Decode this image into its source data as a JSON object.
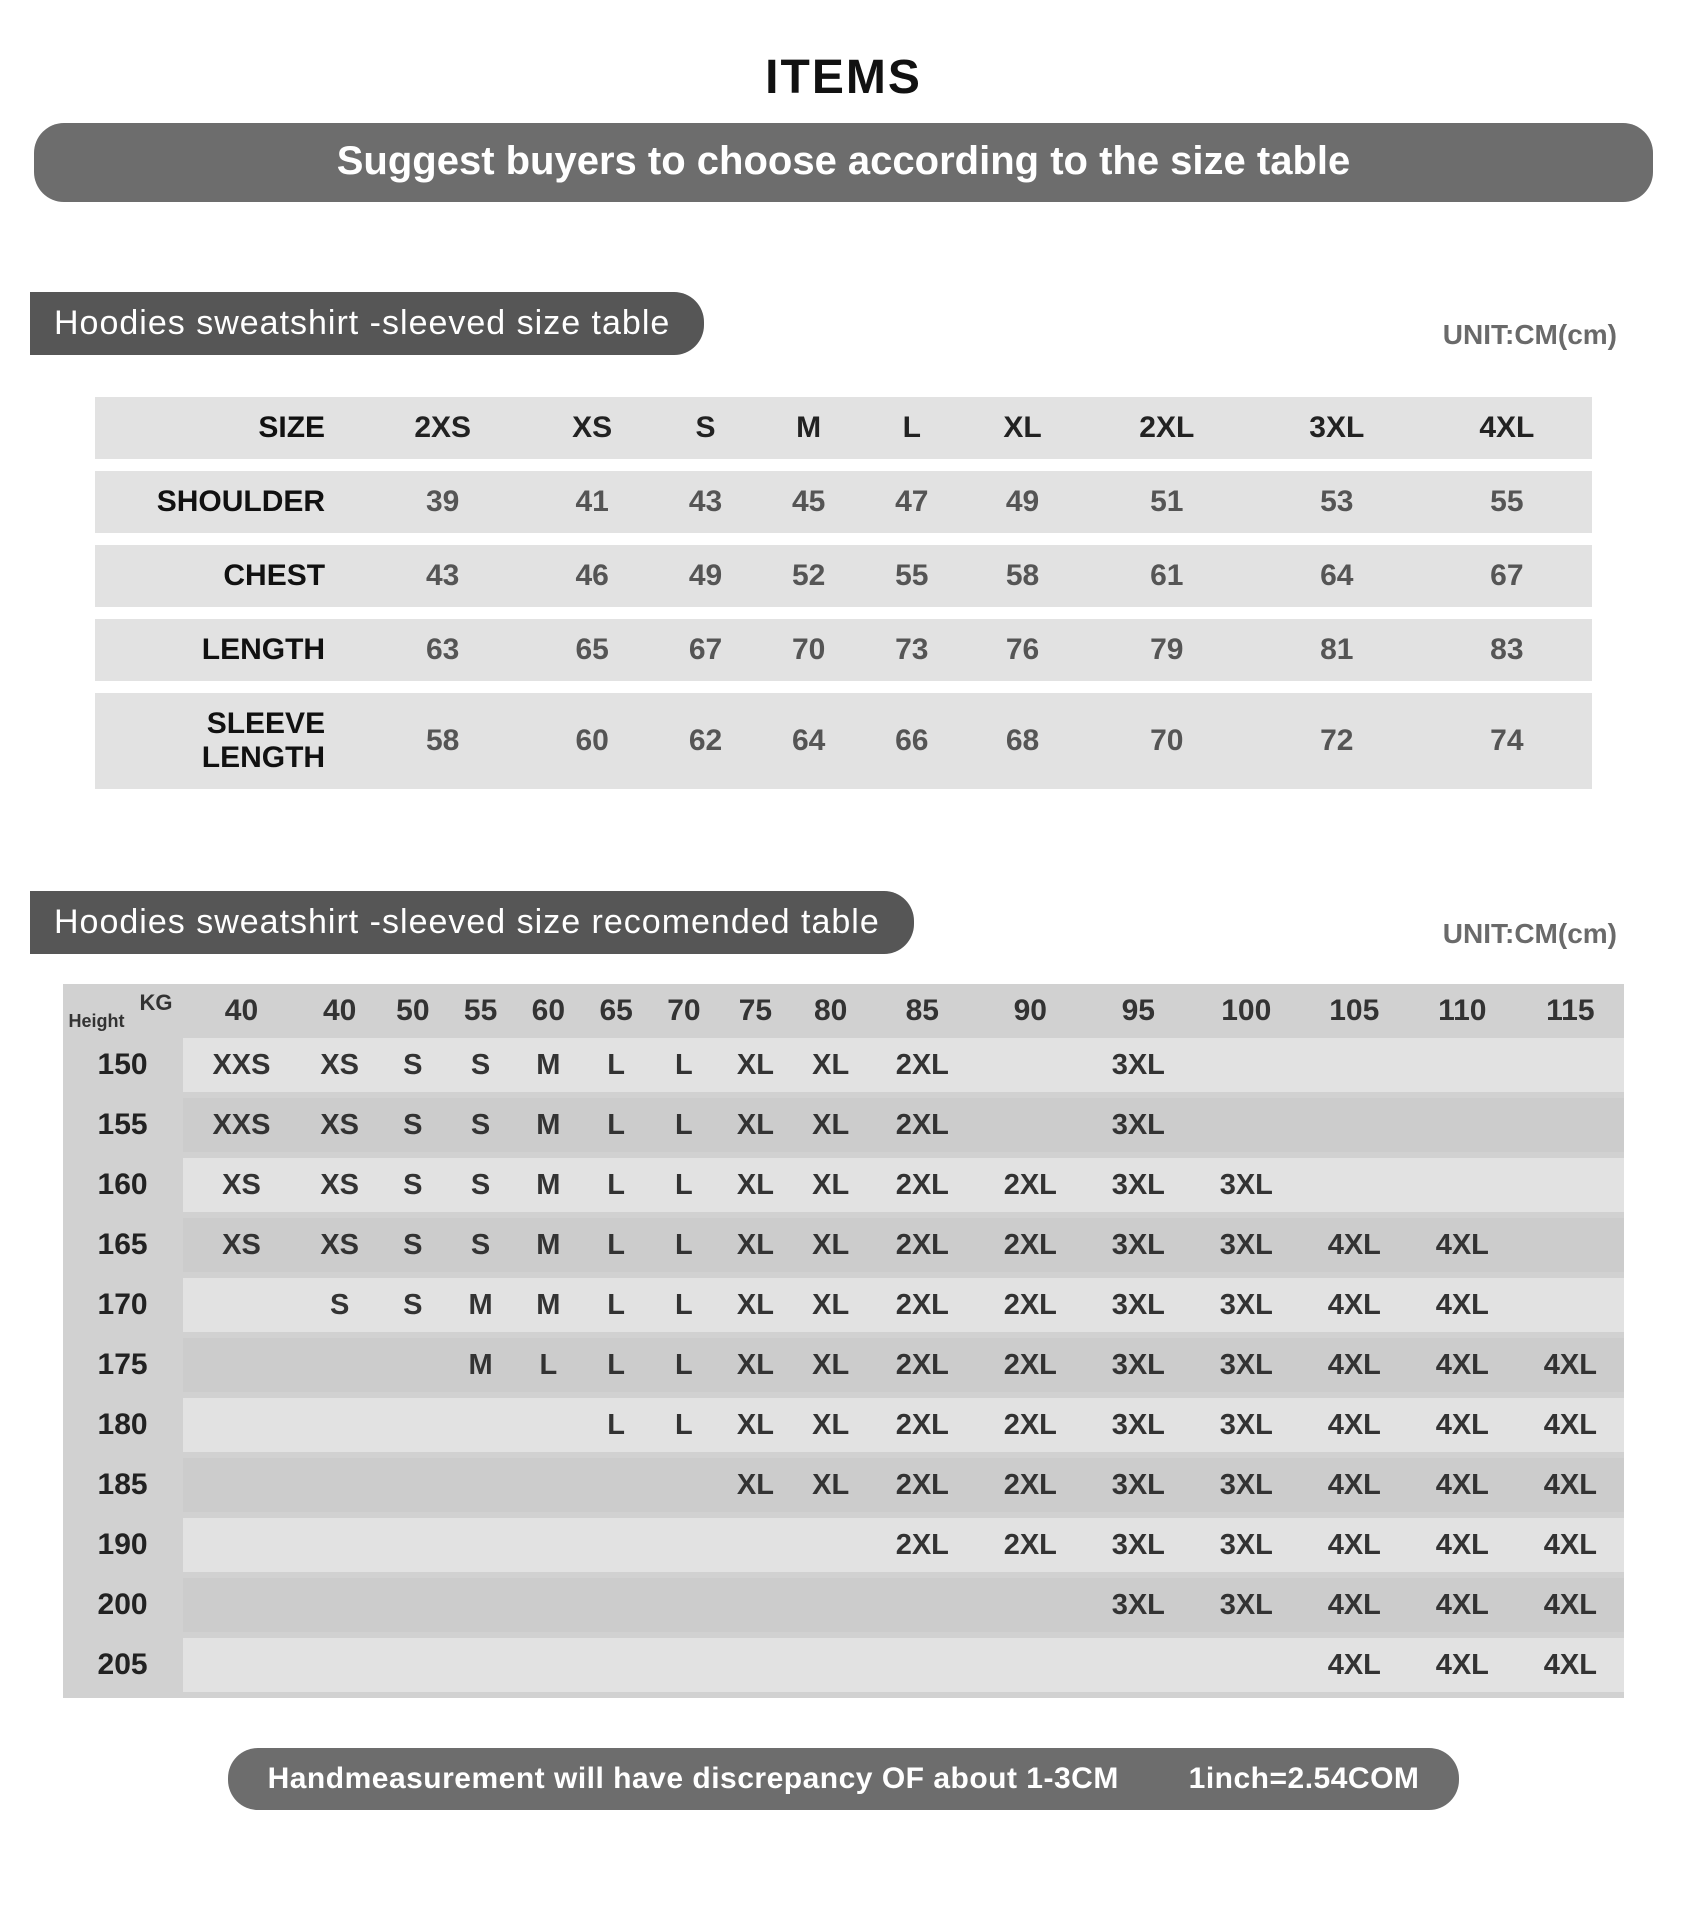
{
  "header": {
    "title": "ITEMS",
    "banner": "Suggest buyers to choose according to the size table"
  },
  "unit_label": "UNIT:CM(cm)",
  "section1": {
    "title": "Hoodies sweatshirt -sleeved  size  table",
    "columns": [
      "SIZE",
      "2XS",
      "XS",
      "S",
      "M",
      "L",
      "XL",
      "2XL",
      "3XL",
      "4XL"
    ],
    "rows": [
      {
        "label": "SHOULDER",
        "values": [
          "39",
          "41",
          "43",
          "45",
          "47",
          "49",
          "51",
          "53",
          "55"
        ]
      },
      {
        "label": "CHEST",
        "values": [
          "43",
          "46",
          "49",
          "52",
          "55",
          "58",
          "61",
          "64",
          "67"
        ]
      },
      {
        "label": "LENGTH",
        "values": [
          "63",
          "65",
          "67",
          "70",
          "73",
          "76",
          "79",
          "81",
          "83"
        ]
      },
      {
        "label": "SLEEVE LENGTH",
        "values": [
          "58",
          "60",
          "62",
          "64",
          "66",
          "68",
          "70",
          "72",
          "74"
        ]
      }
    ]
  },
  "section2": {
    "title": "Hoodies sweatshirt -sleeved size recomended table",
    "corner_top": "KG",
    "corner_bottom": "Height",
    "kg_headers": [
      "40",
      "40",
      "50",
      "55",
      "60",
      "65",
      "70",
      "75",
      "80",
      "85",
      "90",
      "95",
      "100",
      "105",
      "110",
      "115"
    ],
    "rows": [
      {
        "h": "150",
        "c": [
          "XXS",
          "XS",
          "S",
          "S",
          "M",
          "L",
          "L",
          "XL",
          "XL",
          "2XL",
          "",
          "3XL",
          "",
          "",
          "",
          ""
        ]
      },
      {
        "h": "155",
        "c": [
          "XXS",
          "XS",
          "S",
          "S",
          "M",
          "L",
          "L",
          "XL",
          "XL",
          "2XL",
          "",
          "3XL",
          "",
          "",
          "",
          ""
        ]
      },
      {
        "h": "160",
        "c": [
          "XS",
          "XS",
          "S",
          "S",
          "M",
          "L",
          "L",
          "XL",
          "XL",
          "2XL",
          "2XL",
          "3XL",
          "3XL",
          "",
          "",
          ""
        ]
      },
      {
        "h": "165",
        "c": [
          "XS",
          "XS",
          "S",
          "S",
          "M",
          "L",
          "L",
          "XL",
          "XL",
          "2XL",
          "2XL",
          "3XL",
          "3XL",
          "4XL",
          "4XL",
          ""
        ]
      },
      {
        "h": "170",
        "c": [
          "",
          "S",
          "S",
          "M",
          "M",
          "L",
          "L",
          "XL",
          "XL",
          "2XL",
          "2XL",
          "3XL",
          "3XL",
          "4XL",
          "4XL",
          ""
        ]
      },
      {
        "h": "175",
        "c": [
          "",
          "",
          "",
          "M",
          "L",
          "L",
          "L",
          "XL",
          "XL",
          "2XL",
          "2XL",
          "3XL",
          "3XL",
          "4XL",
          "4XL",
          "4XL"
        ]
      },
      {
        "h": "180",
        "c": [
          "",
          "",
          "",
          "",
          "",
          "L",
          "L",
          "XL",
          "XL",
          "2XL",
          "2XL",
          "3XL",
          "3XL",
          "4XL",
          "4XL",
          "4XL"
        ]
      },
      {
        "h": "185",
        "c": [
          "",
          "",
          "",
          "",
          "",
          "",
          "",
          "XL",
          "XL",
          "2XL",
          "2XL",
          "3XL",
          "3XL",
          "4XL",
          "4XL",
          "4XL"
        ]
      },
      {
        "h": "190",
        "c": [
          "",
          "",
          "",
          "",
          "",
          "",
          "",
          "",
          "",
          "2XL",
          "2XL",
          "3XL",
          "3XL",
          "4XL",
          "4XL",
          "4XL"
        ]
      },
      {
        "h": "200",
        "c": [
          "",
          "",
          "",
          "",
          "",
          "",
          "",
          "",
          "",
          "",
          "",
          "3XL",
          "3XL",
          "4XL",
          "4XL",
          "4XL"
        ]
      },
      {
        "h": "205",
        "c": [
          "",
          "",
          "",
          "",
          "",
          "",
          "",
          "",
          "",
          "",
          "",
          "",
          "",
          "4XL",
          "4XL",
          "4XL"
        ]
      }
    ]
  },
  "footnote": "Handmeasurement will have discrepancy OF about 1-3CM   1inch=2.54COM",
  "colors": {
    "banner_bg": "#6d6d6d",
    "pill_bg": "#565656",
    "row_bg": "#e2e2e2",
    "rec_bg": "#d1d1d1",
    "rec_alt": "#cccccc",
    "text_dark": "#222222",
    "text_mid": "#555555"
  }
}
